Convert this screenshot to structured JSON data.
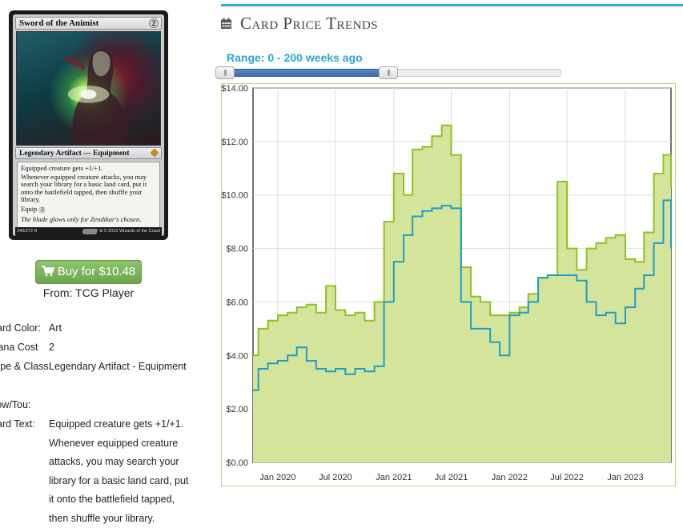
{
  "card": {
    "name": "Sword of the Animist",
    "cost": "2",
    "type_line": "Legendary Artifact — Equipment",
    "rules": [
      "Equipped creature gets +1/+1.",
      "Whenever equipped creature attacks, you may search your library for a basic land card, put it onto the battlefield tapped, then shuffle your library."
    ],
    "equip_label": "Equip",
    "equip_cost": "2",
    "flavor": "The blade glows only for Zendikar's chosen.",
    "collector": "240/272 R",
    "copyright": "™ & © 2015 Wizards of the Coast"
  },
  "buy": {
    "label": "Buy for $10.48",
    "icon": "cart-icon",
    "from": "From: TCG Player"
  },
  "attributes": [
    {
      "label": "Card Color:",
      "value": "Art"
    },
    {
      "label": "Mana Cost",
      "value": "2"
    },
    {
      "label": "Type & Class:",
      "value": "Legendary Artifact - Equipment"
    },
    {
      "label": "Pow/Tou:",
      "value": ""
    },
    {
      "label": "Card Text:",
      "value": "Equipped creature gets +1/+1. Whenever equipped creature attacks, you may search your library for a basic land card, put it onto the battlefield tapped, then shuffle your library."
    }
  ],
  "panel": {
    "title": "Card Price Trends",
    "icon": "calendar-icon",
    "range_label": "Range: 0 - 200 weeks ago",
    "range_min_weeks": 0,
    "range_max_weeks": 200,
    "accent": "#2ab0d4"
  },
  "chart_data": {
    "type": "area",
    "title": "",
    "xlabel": "",
    "ylabel": "",
    "ylim": [
      0,
      14
    ],
    "xlim": [
      "2019-10-15",
      "2023-05-25"
    ],
    "yticks": [
      "$0.00",
      "$2.00",
      "$4.00",
      "$6.00",
      "$8.00",
      "$10.00",
      "$12.00",
      "$14.00"
    ],
    "xticks": [
      {
        "label": "Jan 2020",
        "date": "2020-01-01"
      },
      {
        "label": "Jul 2020",
        "date": "2020-07-01"
      },
      {
        "label": "Jan 2021",
        "date": "2021-01-01"
      },
      {
        "label": "Jul 2021",
        "date": "2021-07-01"
      },
      {
        "label": "Jan 2022",
        "date": "2022-01-01"
      },
      {
        "label": "Jul 2022",
        "date": "2022-07-01"
      },
      {
        "label": "Jan 2023",
        "date": "2023-01-01"
      }
    ],
    "grid": true,
    "x": [
      "2019-10-15",
      "2019-11-01",
      "2019-12-01",
      "2020-01-01",
      "2020-02-01",
      "2020-03-01",
      "2020-04-01",
      "2020-05-01",
      "2020-06-01",
      "2020-07-01",
      "2020-08-01",
      "2020-09-01",
      "2020-10-01",
      "2020-11-01",
      "2020-12-01",
      "2021-01-01",
      "2021-02-01",
      "2021-03-01",
      "2021-04-01",
      "2021-05-01",
      "2021-06-01",
      "2021-07-01",
      "2021-08-01",
      "2021-09-01",
      "2021-10-01",
      "2021-11-01",
      "2021-12-01",
      "2022-01-01",
      "2022-02-01",
      "2022-03-01",
      "2022-04-01",
      "2022-05-01",
      "2022-06-01",
      "2022-07-01",
      "2022-08-01",
      "2022-09-01",
      "2022-10-01",
      "2022-11-01",
      "2022-12-01",
      "2023-01-01",
      "2023-02-01",
      "2023-03-01",
      "2023-04-01",
      "2023-05-01",
      "2023-05-25"
    ],
    "series": [
      {
        "values": [
          4.0,
          5.0,
          5.3,
          5.5,
          5.6,
          5.8,
          5.9,
          5.6,
          6.6,
          5.7,
          5.5,
          5.6,
          5.3,
          6.0,
          9.0,
          10.8,
          10.0,
          11.7,
          11.8,
          12.2,
          12.6,
          11.5,
          7.3,
          6.2,
          6.0,
          5.5,
          5.5,
          5.6,
          5.8,
          6.3,
          6.9,
          7.0,
          10.5,
          8.0,
          7.2,
          8.0,
          8.2,
          8.4,
          8.5,
          7.6,
          7.5,
          8.6,
          10.8,
          11.5,
          10.3
        ],
        "color": "#8dc21f",
        "fill": "#d4e59b"
      },
      {
        "values": [
          2.7,
          3.5,
          3.7,
          3.8,
          4.0,
          4.3,
          3.8,
          3.5,
          3.4,
          3.5,
          3.3,
          3.5,
          3.4,
          3.6,
          6.0,
          7.5,
          8.5,
          9.2,
          9.4,
          9.5,
          9.6,
          9.5,
          6.0,
          5.0,
          5.0,
          4.5,
          4.0,
          5.5,
          5.6,
          6.0,
          6.9,
          7.0,
          7.0,
          7.0,
          6.8,
          6.0,
          5.5,
          5.6,
          5.2,
          5.8,
          6.5,
          7.0,
          8.2,
          9.8,
          8.0
        ],
        "color": "#1d9ec7",
        "fill": "none"
      }
    ]
  }
}
